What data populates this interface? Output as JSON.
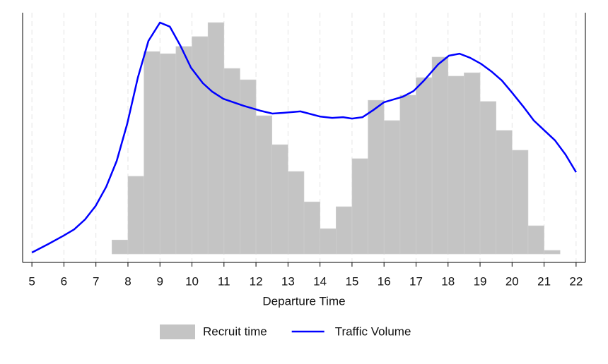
{
  "chart_data": {
    "type": "histogram",
    "x_label": "Departure Time",
    "xlim": [
      4.71,
      22.29
    ],
    "xticks": [
      5,
      6,
      7,
      8,
      9,
      10,
      11,
      12,
      13,
      14,
      15,
      16,
      17,
      18,
      19,
      20,
      21,
      22
    ],
    "ylim": [
      -3.5,
      100
    ],
    "grid": true,
    "legend": "bottom",
    "series": [
      {
        "name": "Recruit time",
        "type": "histogram",
        "color": "#c4c4c4",
        "bins": [
          7.5,
          8,
          8.5,
          9,
          9.5,
          10,
          10.5,
          11,
          11.5,
          12,
          12.5,
          13,
          13.5,
          14,
          14.5,
          15,
          15.5,
          16,
          16.5,
          17,
          17.5,
          18,
          18.5,
          19,
          19.5,
          20,
          20.5,
          21,
          21.5
        ],
        "values": [
          5.8,
          32.2,
          83.9,
          83.0,
          86.0,
          90.1,
          95.9,
          76.9,
          72.2,
          57.3,
          45.3,
          34.2,
          21.6,
          10.5,
          19.6,
          39.5,
          63.7,
          55.3,
          65.8,
          73.1,
          81.6,
          73.7,
          75.1,
          63.2,
          51.2,
          43.0,
          11.7,
          1.5
        ]
      },
      {
        "name": "Traffic Volume",
        "type": "line",
        "color": "#0000ff",
        "x": [
          5.0,
          5.51,
          5.99,
          6.32,
          6.66,
          6.99,
          7.32,
          7.65,
          7.98,
          8.31,
          8.64,
          9.0,
          9.31,
          9.64,
          9.97,
          10.34,
          10.63,
          10.98,
          11.62,
          12.13,
          12.51,
          12.84,
          13.39,
          13.99,
          14.38,
          14.72,
          15.0,
          15.33,
          15.66,
          16.0,
          16.59,
          16.92,
          17.25,
          17.7,
          18.03,
          18.36,
          18.69,
          19.02,
          19.35,
          19.68,
          20.01,
          20.35,
          20.68,
          21.01,
          21.34,
          21.67,
          22.0
        ],
        "values": [
          0.6,
          4.1,
          7.6,
          10.2,
          14.3,
          19.9,
          27.8,
          38.6,
          54.1,
          73.1,
          88.3,
          95.9,
          94.2,
          86.3,
          77.2,
          70.8,
          67.3,
          64.3,
          61.4,
          59.4,
          58.2,
          58.5,
          59.1,
          57.0,
          56.4,
          56.7,
          56.1,
          56.7,
          59.6,
          62.9,
          65.2,
          67.5,
          71.9,
          78.7,
          82.2,
          83.0,
          81.3,
          78.9,
          75.7,
          71.9,
          66.7,
          61.1,
          55.3,
          51.2,
          47.1,
          41.2,
          33.9
        ]
      }
    ]
  }
}
